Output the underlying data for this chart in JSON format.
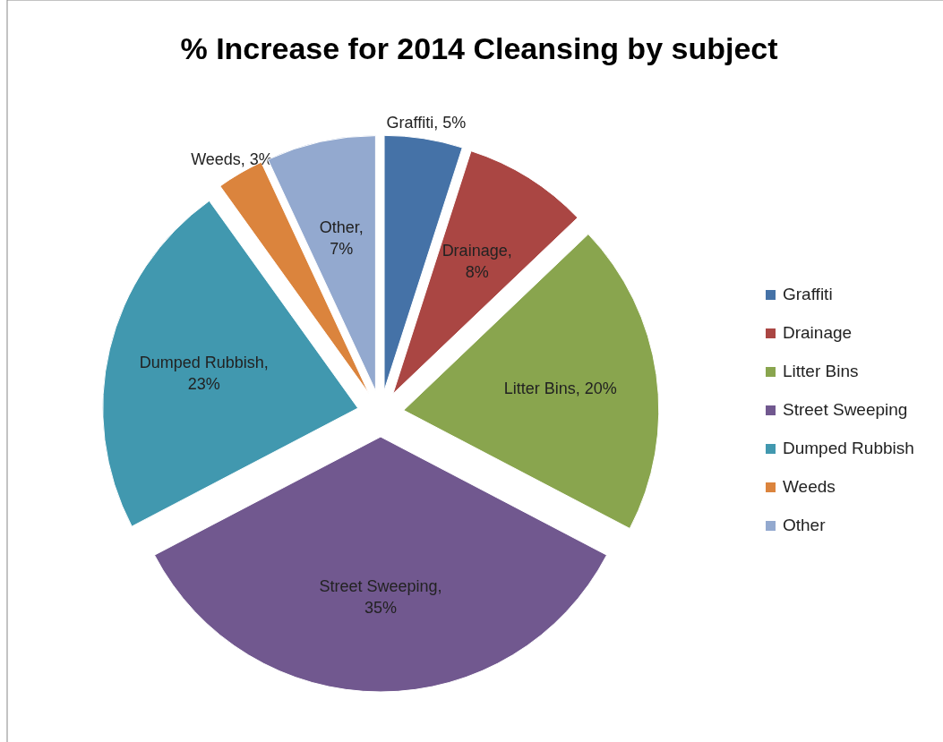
{
  "chart_data": {
    "type": "pie",
    "title": "% Increase for 2014 Cleansing by subject",
    "categories": [
      "Graffiti",
      "Drainage",
      "Litter Bins",
      "Street Sweeping",
      "Dumped Rubbish",
      "Weeds",
      "Other"
    ],
    "values": [
      5,
      8,
      20,
      35,
      23,
      3,
      7
    ],
    "value_labels": [
      "Graffiti, 5%",
      "Drainage, 8%",
      "Litter Bins, 20%",
      "Street Sweeping, 35%",
      "Dumped Rubbish, 23%",
      "Weeds, 3%",
      "Other, 7%"
    ],
    "colors": [
      "#4572a7",
      "#aa4643",
      "#89a54e",
      "#71588f",
      "#4198af",
      "#db843d",
      "#93a9cf"
    ],
    "legend": "right"
  }
}
